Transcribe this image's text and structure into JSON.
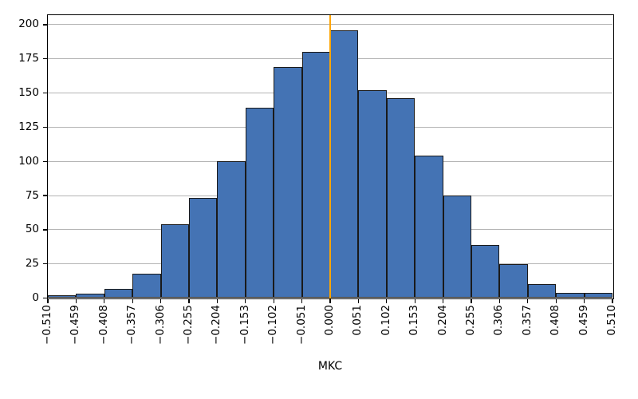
{
  "chart_data": {
    "type": "bar",
    "subtype": "histogram",
    "title": "",
    "xlabel": "MKC",
    "ylabel": "",
    "bin_edges": [
      -0.51,
      -0.459,
      -0.408,
      -0.357,
      -0.306,
      -0.255,
      -0.204,
      -0.153,
      -0.102,
      -0.051,
      0.0,
      0.051,
      0.102,
      0.153,
      0.204,
      0.255,
      0.306,
      0.357,
      0.408,
      0.459,
      0.51
    ],
    "values": [
      2,
      3,
      7,
      18,
      54,
      73,
      100,
      139,
      169,
      180,
      196,
      152,
      146,
      104,
      75,
      39,
      25,
      10,
      4,
      4
    ],
    "yticks": [
      0,
      25,
      50,
      75,
      100,
      125,
      150,
      175,
      200
    ],
    "ylim": [
      0,
      207
    ],
    "xlim": [
      -0.51,
      0.51
    ],
    "grid": "horizontal",
    "legend_position": "none",
    "vline": {
      "x": 0.0,
      "color": "#FFA500"
    },
    "colors": {
      "bar_fill": "#4473B4",
      "bar_edge": "#1A1A1A",
      "grid": "#B4B4B4",
      "spine": "#000000",
      "background": "#FFFFFF",
      "tick_label": "#000000"
    }
  }
}
